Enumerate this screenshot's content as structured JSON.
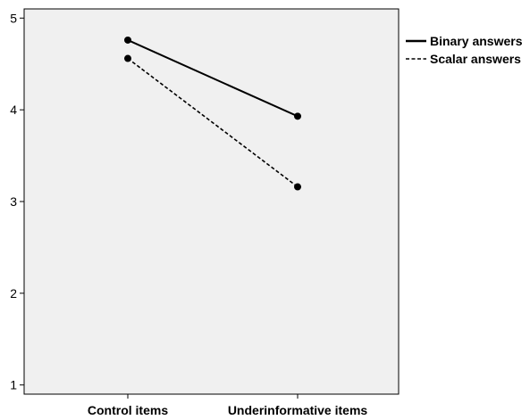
{
  "chart_data": {
    "type": "line",
    "categories": [
      "Control items",
      "Underinformative items"
    ],
    "series": [
      {
        "name": "Binary answers",
        "values": [
          4.76,
          3.93
        ],
        "line_style": "solid",
        "color": "#000000"
      },
      {
        "name": "Scalar answers",
        "values": [
          4.56,
          3.16
        ],
        "line_style": "dashed",
        "color": "#000000"
      }
    ],
    "ylim": [
      0.9,
      5.1
    ],
    "yticks": [
      1,
      2,
      3,
      4,
      5
    ],
    "ytick_labels": [
      "1",
      "2",
      "3",
      "4",
      "5"
    ],
    "title": "",
    "xlabel": "",
    "ylabel": "",
    "grid": false,
    "legend_position": "top-right",
    "plot_background": "#f0f0f0"
  }
}
